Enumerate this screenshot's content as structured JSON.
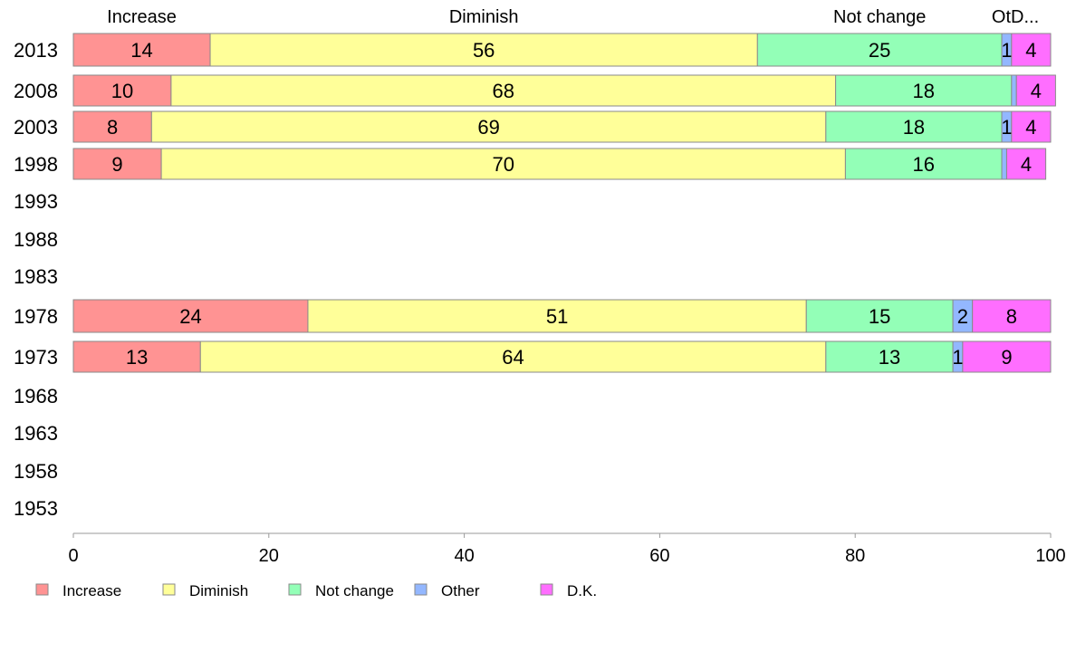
{
  "chart_data": {
    "type": "bar",
    "orientation": "horizontal",
    "stacked": true,
    "categories": [
      "2013",
      "2008",
      "2003",
      "1998",
      "1993",
      "1988",
      "1983",
      "1978",
      "1973",
      "1968",
      "1963",
      "1958",
      "1953"
    ],
    "series": [
      {
        "name": "Increase",
        "color": "#FF9393",
        "values": [
          14,
          10,
          8,
          9,
          null,
          null,
          null,
          24,
          13,
          null,
          null,
          null,
          null
        ]
      },
      {
        "name": "Diminish",
        "color": "#FFFF99",
        "values": [
          56,
          68,
          69,
          70,
          null,
          null,
          null,
          51,
          64,
          null,
          null,
          null,
          null
        ]
      },
      {
        "name": "Not change",
        "color": "#93FFB7",
        "values": [
          25,
          18,
          18,
          16,
          null,
          null,
          null,
          15,
          13,
          null,
          null,
          null,
          null
        ]
      },
      {
        "name": "Other",
        "color": "#93B7FF",
        "values": [
          1,
          0.5,
          1,
          0.5,
          null,
          null,
          null,
          2,
          1,
          null,
          null,
          null,
          null
        ]
      },
      {
        "name": "D.K.",
        "color": "#FF6EFF",
        "values": [
          4,
          4,
          4,
          4,
          null,
          null,
          null,
          8,
          9,
          null,
          null,
          null,
          null
        ]
      }
    ],
    "data_labels": [
      [
        "14",
        "56",
        "25",
        "1",
        "4"
      ],
      [
        "10",
        "68",
        "18",
        "",
        "4"
      ],
      [
        "8",
        "69",
        "18",
        "1",
        "4"
      ],
      [
        "9",
        "70",
        "16",
        "",
        "4"
      ],
      null,
      null,
      null,
      [
        "24",
        "51",
        "15",
        "2",
        "8"
      ],
      [
        "13",
        "64",
        "13",
        "1",
        "9"
      ],
      null,
      null,
      null,
      null
    ],
    "top_labels": [
      {
        "text": "Increase",
        "series": 0
      },
      {
        "text": "Diminish",
        "series": 1
      },
      {
        "text": "Not change",
        "series": 2
      },
      {
        "text": "OtD...",
        "series": 3
      }
    ],
    "xaxis": {
      "ticks": [
        0,
        20,
        40,
        60,
        80,
        100
      ],
      "xlim": [
        0,
        100
      ]
    },
    "xlabel": "",
    "ylabel": "",
    "title": "",
    "grid": false,
    "legend": {
      "position": "bottom-left",
      "entries": [
        "Increase",
        "Diminish",
        "Not change",
        "Other",
        "D.K."
      ]
    }
  }
}
